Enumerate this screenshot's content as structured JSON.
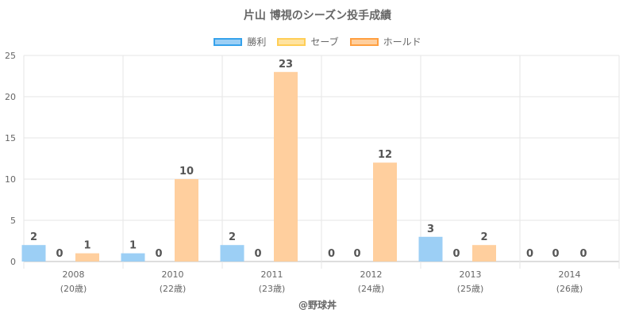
{
  "title": "片山 博視のシーズン投手成績",
  "credit": "@野球丼",
  "chart_data": {
    "type": "bar",
    "categories": [
      "2008",
      "2010",
      "2011",
      "2012",
      "2013",
      "2014"
    ],
    "category_sublabels": [
      "(20歳)",
      "(22歳)",
      "(23歳)",
      "(24歳)",
      "(25歳)",
      "(26歳)"
    ],
    "series": [
      {
        "name": "勝利",
        "values": [
          2,
          1,
          2,
          0,
          3,
          0
        ],
        "fill": "#9ccff5",
        "stroke": "#36a2eb"
      },
      {
        "name": "セーブ",
        "values": [
          0,
          0,
          0,
          0,
          0,
          0
        ],
        "fill": "#ffe3a0",
        "stroke": "#ffce56"
      },
      {
        "name": "ホールド",
        "values": [
          1,
          10,
          23,
          12,
          2,
          0
        ],
        "fill": "#ffcf9e",
        "stroke": "#ff9f40"
      }
    ],
    "yticks": [
      "0",
      "5",
      "10",
      "15",
      "20",
      "25"
    ],
    "ylim": [
      0,
      25
    ],
    "grid": true,
    "legend_position": "top-center"
  }
}
